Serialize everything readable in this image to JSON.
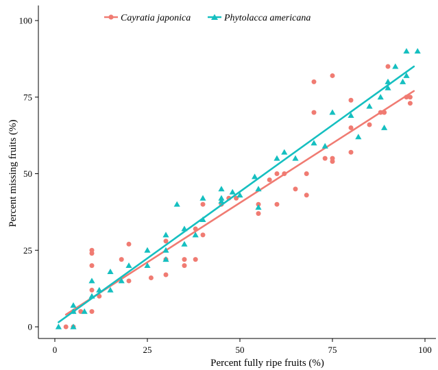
{
  "chart_data": {
    "type": "scatter",
    "title": "",
    "xlabel": "Percent fully ripe fruits (%)",
    "ylabel": "Percent missing fruits (%)",
    "xlim": [
      0,
      100
    ],
    "ylim": [
      0,
      100
    ],
    "xticks": [
      0,
      25,
      50,
      75,
      100
    ],
    "yticks": [
      0,
      25,
      50,
      75,
      100
    ],
    "xtick_labels": [
      "0",
      "25",
      "50",
      "75",
      "100"
    ],
    "ytick_labels": [
      "0",
      "25",
      "50",
      "75",
      "100"
    ],
    "grid": false,
    "legend_position": "top",
    "series": [
      {
        "name": "Cayratia japonica",
        "color": "#F07B72",
        "marker": "circle",
        "trendline": [
          [
            3,
            4
          ],
          [
            97,
            77
          ]
        ],
        "points": [
          [
            3,
            0
          ],
          [
            5,
            0
          ],
          [
            5,
            5
          ],
          [
            7,
            5
          ],
          [
            10,
            5
          ],
          [
            10,
            12
          ],
          [
            10,
            20
          ],
          [
            10,
            24
          ],
          [
            10,
            25
          ],
          [
            12,
            10
          ],
          [
            18,
            22
          ],
          [
            20,
            15
          ],
          [
            20,
            27
          ],
          [
            26,
            16
          ],
          [
            30,
            17
          ],
          [
            30,
            22
          ],
          [
            30,
            28
          ],
          [
            35,
            20
          ],
          [
            35,
            22
          ],
          [
            38,
            22
          ],
          [
            38,
            32
          ],
          [
            40,
            30
          ],
          [
            40,
            40
          ],
          [
            45,
            40
          ],
          [
            47,
            42
          ],
          [
            49,
            42
          ],
          [
            55,
            37
          ],
          [
            55,
            40
          ],
          [
            58,
            48
          ],
          [
            60,
            40
          ],
          [
            60,
            50
          ],
          [
            62,
            50
          ],
          [
            65,
            45
          ],
          [
            68,
            43
          ],
          [
            68,
            50
          ],
          [
            70,
            70
          ],
          [
            70,
            80
          ],
          [
            73,
            55
          ],
          [
            75,
            54
          ],
          [
            75,
            55
          ],
          [
            75,
            82
          ],
          [
            80,
            57
          ],
          [
            80,
            65
          ],
          [
            80,
            74
          ],
          [
            85,
            66
          ],
          [
            88,
            70
          ],
          [
            89,
            70
          ],
          [
            90,
            85
          ],
          [
            95,
            75
          ],
          [
            96,
            73
          ],
          [
            96,
            75
          ]
        ]
      },
      {
        "name": "Phytolacca americana",
        "color": "#15BFC0",
        "marker": "triangle",
        "trendline": [
          [
            1,
            1.5
          ],
          [
            97,
            85
          ]
        ],
        "points": [
          [
            1,
            0
          ],
          [
            5,
            0
          ],
          [
            5,
            5
          ],
          [
            5,
            7
          ],
          [
            8,
            5
          ],
          [
            10,
            10
          ],
          [
            10,
            15
          ],
          [
            12,
            12
          ],
          [
            15,
            12
          ],
          [
            15,
            18
          ],
          [
            18,
            15
          ],
          [
            20,
            20
          ],
          [
            25,
            20
          ],
          [
            25,
            25
          ],
          [
            30,
            22
          ],
          [
            30,
            25
          ],
          [
            30,
            30
          ],
          [
            33,
            40
          ],
          [
            35,
            27
          ],
          [
            35,
            32
          ],
          [
            38,
            30
          ],
          [
            40,
            35
          ],
          [
            40,
            42
          ],
          [
            45,
            41
          ],
          [
            45,
            42
          ],
          [
            45,
            45
          ],
          [
            48,
            44
          ],
          [
            50,
            43
          ],
          [
            54,
            49
          ],
          [
            55,
            39
          ],
          [
            55,
            45
          ],
          [
            60,
            55
          ],
          [
            62,
            57
          ],
          [
            65,
            55
          ],
          [
            70,
            60
          ],
          [
            73,
            59
          ],
          [
            75,
            70
          ],
          [
            80,
            69
          ],
          [
            82,
            62
          ],
          [
            85,
            72
          ],
          [
            88,
            75
          ],
          [
            89,
            65
          ],
          [
            90,
            78
          ],
          [
            90,
            80
          ],
          [
            92,
            85
          ],
          [
            94,
            80
          ],
          [
            95,
            82
          ],
          [
            95,
            90
          ],
          [
            98,
            90
          ]
        ]
      }
    ]
  }
}
